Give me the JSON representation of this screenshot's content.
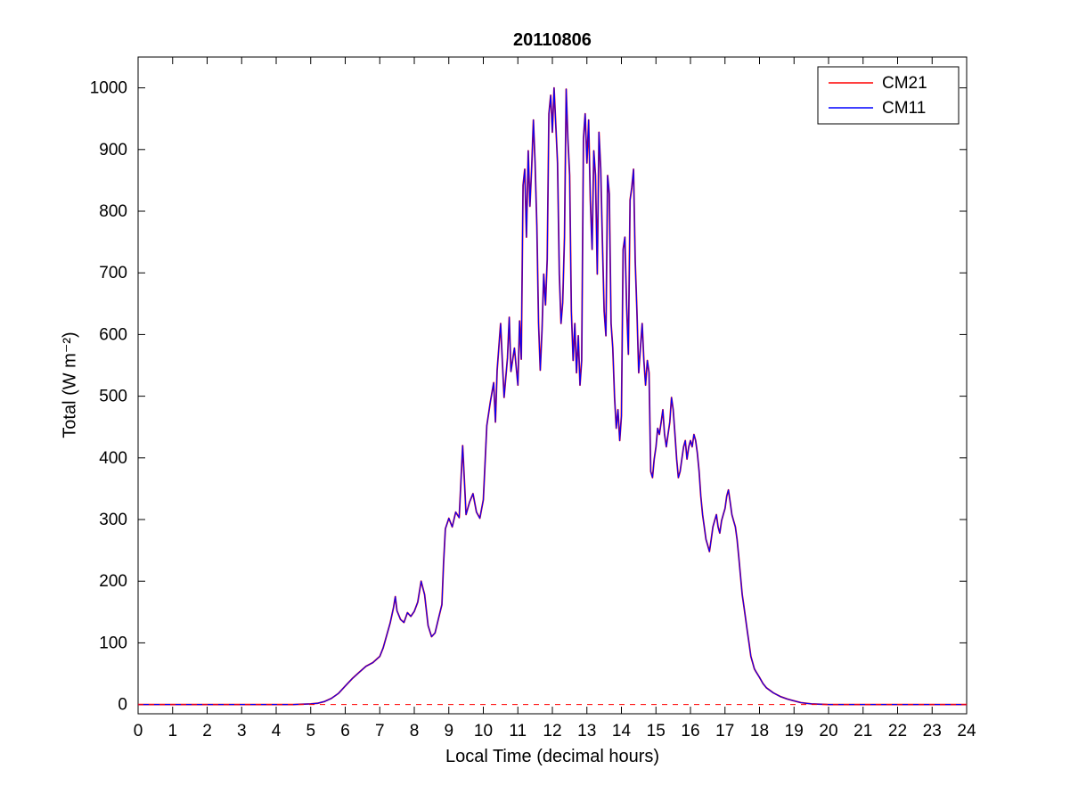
{
  "chart_data": {
    "type": "line",
    "title": "20110806",
    "xlabel": "Local Time (decimal hours)",
    "ylabel": "Total (W m⁻²)",
    "xlim": [
      0,
      24
    ],
    "ylim": [
      -15,
      1050
    ],
    "xticks": [
      0,
      1,
      2,
      3,
      4,
      5,
      6,
      7,
      8,
      9,
      10,
      11,
      12,
      13,
      14,
      15,
      16,
      17,
      18,
      19,
      20,
      21,
      22,
      23,
      24
    ],
    "yticks": [
      0,
      100,
      200,
      300,
      400,
      500,
      600,
      700,
      800,
      900,
      1000
    ],
    "grid": false,
    "legend_position": "top-right",
    "zero_line": {
      "y": 0,
      "color": "#ff0000",
      "style": "dashed"
    },
    "note": "CM21 (red) and CM11 (blue) curves coincide at this resolution; blue drawn on top.",
    "x": [
      0,
      0.5,
      1,
      1.5,
      2,
      2.5,
      3,
      3.5,
      4,
      4.5,
      5,
      5.2,
      5.4,
      5.6,
      5.8,
      6,
      6.2,
      6.4,
      6.6,
      6.8,
      7,
      7.1,
      7.2,
      7.3,
      7.4,
      7.45,
      7.5,
      7.6,
      7.7,
      7.8,
      7.9,
      8,
      8.1,
      8.2,
      8.3,
      8.4,
      8.5,
      8.6,
      8.7,
      8.8,
      8.85,
      8.9,
      9,
      9.1,
      9.2,
      9.3,
      9.35,
      9.4,
      9.45,
      9.5,
      9.6,
      9.7,
      9.8,
      9.9,
      10,
      10.05,
      10.1,
      10.2,
      10.3,
      10.35,
      10.4,
      10.5,
      10.55,
      10.6,
      10.7,
      10.75,
      10.8,
      10.9,
      11,
      11.05,
      11.1,
      11.15,
      11.2,
      11.25,
      11.3,
      11.35,
      11.4,
      11.45,
      11.5,
      11.55,
      11.6,
      11.65,
      11.7,
      11.75,
      11.8,
      11.85,
      11.9,
      11.95,
      12,
      12.05,
      12.1,
      12.15,
      12.2,
      12.25,
      12.3,
      12.35,
      12.4,
      12.45,
      12.5,
      12.55,
      12.6,
      12.65,
      12.7,
      12.75,
      12.8,
      12.85,
      12.9,
      12.95,
      13,
      13.05,
      13.1,
      13.15,
      13.2,
      13.25,
      13.3,
      13.35,
      13.4,
      13.45,
      13.5,
      13.55,
      13.6,
      13.65,
      13.7,
      13.75,
      13.8,
      13.85,
      13.9,
      13.95,
      14,
      14.05,
      14.1,
      14.15,
      14.2,
      14.25,
      14.3,
      14.35,
      14.4,
      14.45,
      14.5,
      14.55,
      14.6,
      14.65,
      14.7,
      14.75,
      14.8,
      14.85,
      14.9,
      14.95,
      15,
      15.05,
      15.1,
      15.15,
      15.2,
      15.25,
      15.3,
      15.35,
      15.4,
      15.45,
      15.5,
      15.55,
      15.6,
      15.65,
      15.7,
      15.75,
      15.8,
      15.85,
      15.9,
      15.95,
      16,
      16.05,
      16.1,
      16.15,
      16.2,
      16.25,
      16.3,
      16.35,
      16.4,
      16.45,
      16.5,
      16.55,
      16.6,
      16.65,
      16.7,
      16.75,
      16.8,
      16.85,
      16.9,
      16.95,
      17,
      17.05,
      17.1,
      17.15,
      17.2,
      17.25,
      17.3,
      17.35,
      17.4,
      17.45,
      17.5,
      17.55,
      17.6,
      17.65,
      17.7,
      17.75,
      17.8,
      17.85,
      17.9,
      18,
      18.1,
      18.2,
      18.4,
      18.6,
      18.8,
      19,
      19.2,
      19.5,
      20,
      20.5,
      21,
      21.5,
      22,
      22.5,
      23,
      23.5,
      24
    ],
    "shared_values": [
      0,
      0,
      0,
      0,
      0,
      0,
      0,
      0,
      0,
      0,
      1,
      2,
      5,
      10,
      18,
      30,
      42,
      52,
      62,
      68,
      78,
      92,
      112,
      132,
      158,
      175,
      152,
      138,
      133,
      149,
      143,
      151,
      166,
      200,
      178,
      128,
      110,
      116,
      139,
      162,
      230,
      285,
      302,
      288,
      312,
      303,
      360,
      420,
      365,
      308,
      328,
      342,
      312,
      302,
      332,
      390,
      452,
      490,
      522,
      458,
      542,
      618,
      558,
      498,
      562,
      628,
      540,
      578,
      518,
      622,
      560,
      842,
      868,
      758,
      898,
      808,
      872,
      948,
      878,
      775,
      618,
      542,
      608,
      698,
      648,
      722,
      958,
      988,
      928,
      1000,
      938,
      878,
      698,
      618,
      652,
      758,
      998,
      918,
      858,
      638,
      558,
      618,
      538,
      598,
      518,
      558,
      918,
      958,
      878,
      948,
      818,
      738,
      898,
      858,
      698,
      928,
      868,
      748,
      638,
      598,
      858,
      828,
      618,
      578,
      498,
      448,
      478,
      428,
      468,
      738,
      758,
      648,
      568,
      818,
      838,
      868,
      718,
      638,
      538,
      578,
      618,
      558,
      518,
      558,
      538,
      378,
      368,
      398,
      418,
      448,
      438,
      458,
      478,
      438,
      418,
      438,
      458,
      498,
      478,
      438,
      398,
      368,
      378,
      398,
      418,
      428,
      398,
      418,
      428,
      418,
      438,
      428,
      408,
      378,
      338,
      308,
      288,
      268,
      258,
      248,
      268,
      288,
      298,
      308,
      288,
      278,
      298,
      308,
      318,
      338,
      348,
      328,
      308,
      298,
      288,
      268,
      238,
      208,
      178,
      158,
      138,
      118,
      98,
      78,
      68,
      58,
      53,
      44,
      34,
      27,
      19,
      13,
      9,
      6,
      3,
      1,
      0,
      0,
      0,
      0,
      0,
      0,
      0,
      0,
      0
    ],
    "series": [
      {
        "name": "CM21",
        "color": "#ff0000",
        "values": "shared"
      },
      {
        "name": "CM11",
        "color": "#0000ff",
        "values": "shared"
      }
    ]
  }
}
